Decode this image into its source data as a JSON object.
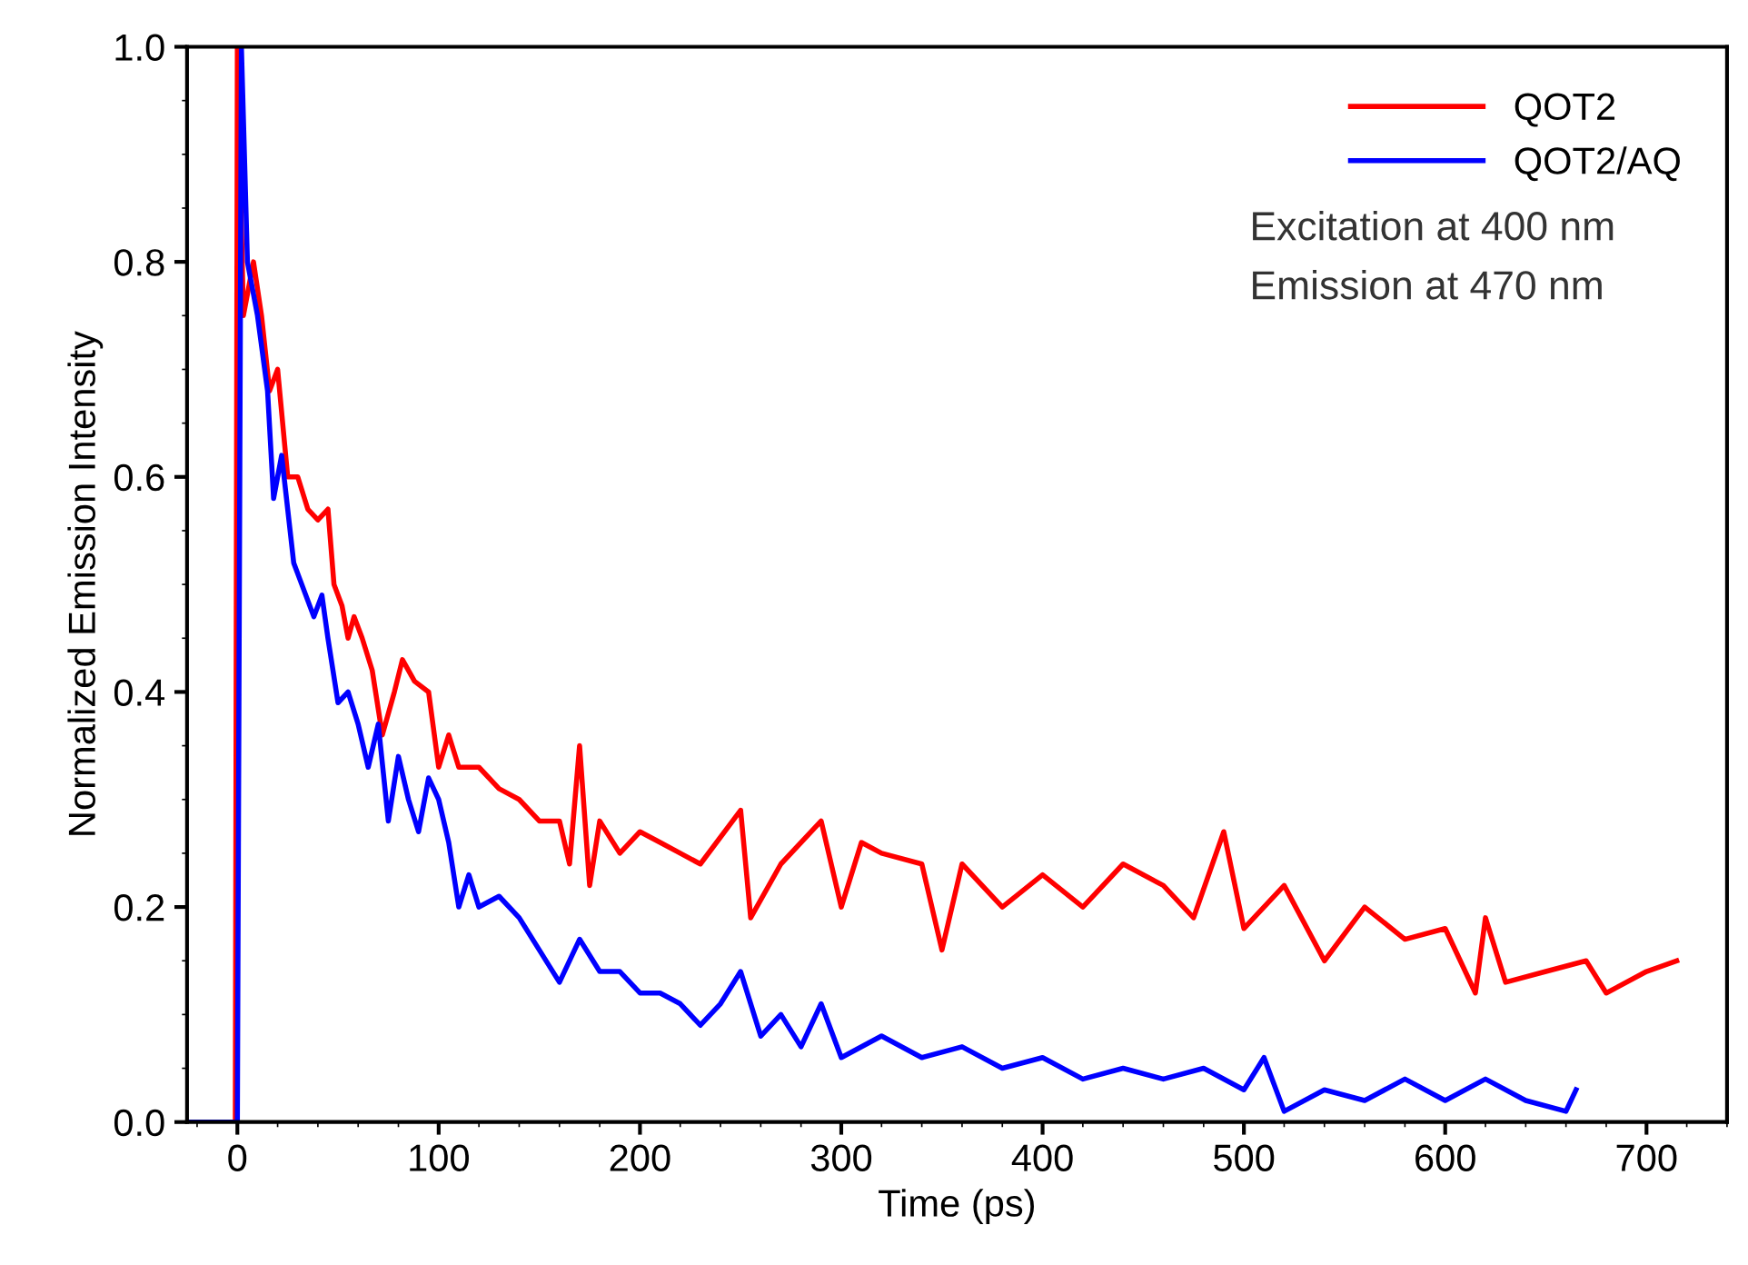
{
  "chart_data": {
    "type": "line",
    "xlabel": "Time (ps)",
    "ylabel": "Normalized Emission Intensity",
    "xlim": [
      -25,
      740
    ],
    "ylim": [
      0,
      1.0
    ],
    "xticks": [
      0,
      100,
      200,
      300,
      400,
      500,
      600,
      700
    ],
    "yticks": [
      {
        "value": 0,
        "label": "0.0"
      },
      {
        "value": 0.2,
        "label": "0.2"
      },
      {
        "value": 0.4,
        "label": "0.4"
      },
      {
        "value": 0.6,
        "label": "0.6"
      },
      {
        "value": 0.8,
        "label": "0.8"
      },
      {
        "value": 1.0,
        "label": "1.0"
      }
    ],
    "grid": false,
    "legend": "top right",
    "marker": "none",
    "line_style": "solid",
    "annotations": [
      "Excitation at 400 nm",
      "Emission at 470 nm"
    ],
    "series": [
      {
        "name": "QOT2",
        "color": "#ff0000",
        "x": [
          -25,
          -15,
          -5,
          -1,
          0,
          3,
          8,
          12,
          16,
          20,
          25,
          30,
          35,
          40,
          45,
          48,
          52,
          55,
          58,
          62,
          67,
          72,
          78,
          82,
          88,
          95,
          100,
          105,
          110,
          120,
          130,
          140,
          150,
          160,
          165,
          170,
          175,
          180,
          190,
          200,
          210,
          220,
          230,
          250,
          255,
          270,
          290,
          300,
          310,
          320,
          340,
          350,
          360,
          380,
          400,
          420,
          440,
          460,
          475,
          490,
          500,
          520,
          540,
          560,
          580,
          600,
          615,
          620,
          630,
          650,
          670,
          680,
          700,
          715
        ],
        "values": [
          0,
          0,
          0,
          0,
          1.0,
          0.75,
          0.8,
          0.75,
          0.68,
          0.7,
          0.6,
          0.6,
          0.57,
          0.56,
          0.57,
          0.5,
          0.48,
          0.45,
          0.47,
          0.45,
          0.42,
          0.36,
          0.4,
          0.43,
          0.41,
          0.4,
          0.33,
          0.36,
          0.33,
          0.33,
          0.31,
          0.3,
          0.28,
          0.28,
          0.24,
          0.35,
          0.22,
          0.28,
          0.25,
          0.27,
          0.26,
          0.25,
          0.24,
          0.29,
          0.19,
          0.24,
          0.28,
          0.2,
          0.26,
          0.25,
          0.24,
          0.16,
          0.24,
          0.2,
          0.23,
          0.2,
          0.24,
          0.22,
          0.19,
          0.27,
          0.18,
          0.22,
          0.15,
          0.2,
          0.17,
          0.18,
          0.12,
          0.19,
          0.13,
          0.14,
          0.15,
          0.12,
          0.14,
          0.15
        ]
      },
      {
        "name": "QOT2/AQ",
        "color": "#0000ff",
        "x": [
          -25,
          -10,
          0,
          2,
          5,
          10,
          15,
          18,
          22,
          28,
          32,
          38,
          42,
          45,
          50,
          55,
          60,
          65,
          70,
          75,
          80,
          85,
          90,
          95,
          100,
          105,
          110,
          115,
          120,
          130,
          140,
          150,
          160,
          170,
          180,
          190,
          200,
          210,
          220,
          230,
          240,
          250,
          260,
          270,
          280,
          290,
          300,
          320,
          340,
          360,
          380,
          400,
          420,
          440,
          460,
          480,
          500,
          510,
          520,
          540,
          560,
          580,
          600,
          620,
          640,
          660,
          665
        ],
        "values": [
          0,
          0,
          0,
          1.0,
          0.8,
          0.75,
          0.68,
          0.58,
          0.62,
          0.52,
          0.5,
          0.47,
          0.49,
          0.45,
          0.39,
          0.4,
          0.37,
          0.33,
          0.37,
          0.28,
          0.34,
          0.3,
          0.27,
          0.32,
          0.3,
          0.26,
          0.2,
          0.23,
          0.2,
          0.21,
          0.19,
          0.16,
          0.13,
          0.17,
          0.14,
          0.14,
          0.12,
          0.12,
          0.11,
          0.09,
          0.11,
          0.14,
          0.08,
          0.1,
          0.07,
          0.11,
          0.06,
          0.08,
          0.06,
          0.07,
          0.05,
          0.06,
          0.04,
          0.05,
          0.04,
          0.05,
          0.03,
          0.06,
          0.01,
          0.03,
          0.02,
          0.04,
          0.02,
          0.04,
          0.02,
          0.01,
          0.03
        ]
      }
    ]
  }
}
